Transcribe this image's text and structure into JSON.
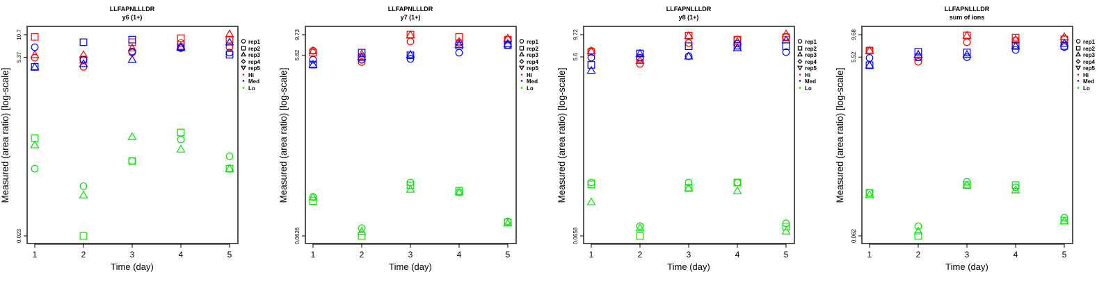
{
  "chart_data": {
    "type": "scatter",
    "scale": "log-y",
    "x": [
      1,
      2,
      3,
      4,
      5
    ],
    "xlabel": "Time (day)",
    "ylabel": "Measured (area ratio) [log-scale]",
    "legend": {
      "placement": "right",
      "entries": [
        {
          "label": "rep1",
          "symbol": "circle"
        },
        {
          "label": "rep2",
          "symbol": "square"
        },
        {
          "label": "rep3",
          "symbol": "triangle-up"
        },
        {
          "label": "rep4",
          "symbol": "diamond"
        },
        {
          "label": "rep5",
          "symbol": "triangle-down"
        },
        {
          "label": "Hi",
          "color": "#ff0000"
        },
        {
          "label": "Med",
          "color": "#0000ff"
        },
        {
          "label": "Lo",
          "color": "#00e600"
        }
      ]
    },
    "panels": [
      {
        "title": "LLFAPNLLLDR",
        "subtitle": "y6 (1+)",
        "yticks": [
          "0.023",
          "5.37",
          "10.7"
        ],
        "ylim": [
          0.023,
          10.7
        ],
        "series": {
          "Hi": {
            "rep1": [
              5.3,
              4.0,
              6.2,
              8.3,
              7.3
            ],
            "rep2": [
              10.0,
              5.0,
              8.5,
              9.6,
              9.2
            ],
            "rep3": [
              5.8,
              5.8,
              7.1,
              7.5,
              10.9
            ]
          },
          "Med": {
            "rep1": [
              7.3,
              5.0,
              6.4,
              7.1,
              6.2
            ],
            "rep2": [
              4.0,
              8.5,
              9.2,
              7.3,
              5.8
            ],
            "rep3": [
              4.0,
              4.4,
              5.0,
              7.3,
              8.5
            ]
          },
          "Lo": {
            "rep1": [
              0.179,
              0.105,
              0.226,
              0.436,
              0.262
            ],
            "rep2": [
              0.455,
              0.023,
              0.226,
              0.54,
              0.179
            ],
            "rep3": [
              0.37,
              0.08,
              0.475,
              0.324,
              0.179
            ]
          }
        }
      },
      {
        "title": "LLFAPNLLLDR",
        "subtitle": "y7 (1+)",
        "yticks": [
          "0.0626",
          "5.82",
          "9.73"
        ],
        "ylim": [
          0.0626,
          9.73
        ],
        "series": {
          "Hi": {
            "rep1": [
              6.5,
              4.9,
              8.2,
              8.0,
              8.6
            ],
            "rep2": [
              6.2,
              5.5,
              9.73,
              9.2,
              8.6
            ],
            "rep3": [
              6.5,
              6.0,
              9.7,
              8.2,
              8.9
            ]
          },
          "Med": {
            "rep1": [
              5.2,
              5.2,
              5.3,
              6.2,
              7.5
            ],
            "rep2": [
              4.6,
              6.2,
              5.8,
              7.4,
              7.5
            ],
            "rep3": [
              4.6,
              5.6,
              5.9,
              7.6,
              7.8
            ]
          },
          "Lo": {
            "rep1": [
              0.166,
              0.076,
              0.239,
              0.187,
              0.09
            ],
            "rep2": [
              0.15,
              0.0626,
              0.223,
              0.194,
              0.088
            ],
            "rep3": [
              0.166,
              0.07,
              0.201,
              0.187,
              0.086
            ]
          }
        }
      },
      {
        "title": "LLFAPNLLLDR",
        "subtitle": "y8 (1+)",
        "yticks": [
          "0.0658",
          "5.6",
          "9.72"
        ],
        "ylim": [
          0.0658,
          9.72
        ],
        "series": {
          "Hi": {
            "rep1": [
              6.5,
              4.7,
              7.9,
              8.6,
              9.2
            ],
            "rep2": [
              6.3,
              5.3,
              9.5,
              8.6,
              9.1
            ],
            "rep3": [
              6.5,
              5.1,
              9.5,
              8.2,
              9.9
            ]
          },
          "Med": {
            "rep1": [
              5.5,
              5.5,
              5.7,
              7.8,
              6.3
            ],
            "rep2": [
              4.6,
              6.1,
              7.3,
              7.4,
              7.3
            ],
            "rep3": [
              4.0,
              6.1,
              5.7,
              7.0,
              8.5
            ]
          },
          "Lo": {
            "rep1": [
              0.248,
              0.084,
              0.248,
              0.248,
              0.09
            ],
            "rep2": [
              0.236,
              0.0658,
              0.216,
              0.248,
              0.083
            ],
            "rep3": [
              0.153,
              0.08,
              0.216,
              0.201,
              0.074
            ]
          }
        }
      },
      {
        "title": "LLFAPNLLLDR",
        "subtitle": "sum of ions",
        "yticks": [
          "0.062",
          "5.52",
          "9.68"
        ],
        "ylim": [
          0.062,
          9.68
        ],
        "series": {
          "Hi": {
            "rep1": [
              6.5,
              4.9,
              8.0,
              8.4,
              8.7
            ],
            "rep2": [
              6.5,
              5.5,
              9.5,
              9.0,
              8.6
            ],
            "rep3": [
              6.5,
              5.9,
              9.5,
              8.6,
              9.2
            ]
          },
          "Med": {
            "rep1": [
              5.4,
              5.5,
              5.5,
              6.6,
              7.1
            ],
            "rep2": [
              4.5,
              6.3,
              6.2,
              7.3,
              7.3
            ],
            "rep3": [
              4.5,
              5.9,
              5.9,
              7.3,
              7.8
            ]
          },
          "Lo": {
            "rep1": [
              0.183,
              0.079,
              0.241,
              0.21,
              0.098
            ],
            "rep2": [
              0.183,
              0.062,
              0.222,
              0.222,
              0.091
            ],
            "rep3": [
              0.174,
              0.07,
              0.222,
              0.196,
              0.09
            ]
          }
        }
      }
    ]
  }
}
